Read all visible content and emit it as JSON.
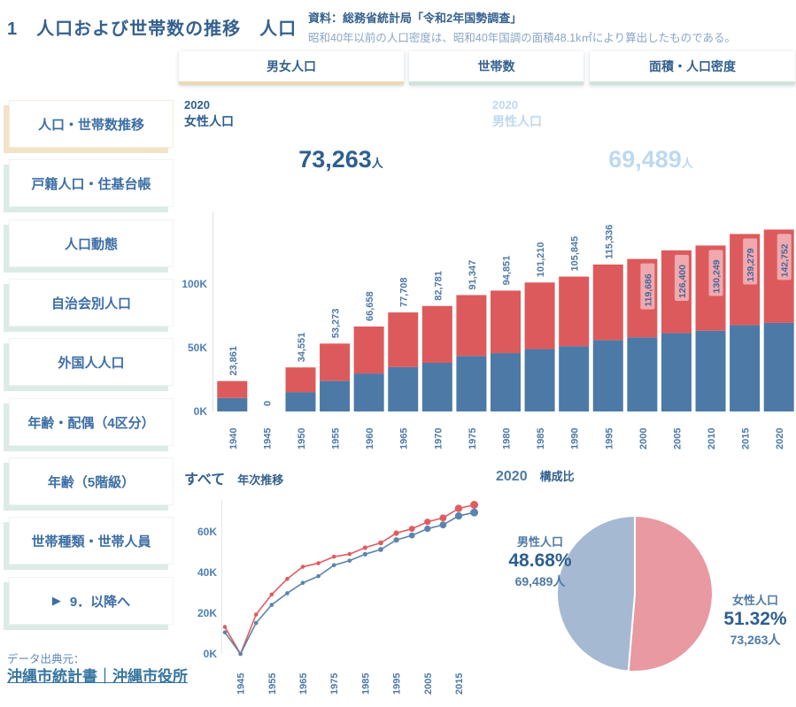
{
  "page": {
    "title": "1　人口および世帯数の推移　人口",
    "source_line1": "資料：総務省統計局「令和2年国勢調査」",
    "source_line2": "昭和40年以前の人口密度は、昭和40年国調の面積48.1k㎡により算出したものである。"
  },
  "colors": {
    "bar_male_blue": "#4d79a6",
    "bar_female_red": "#dd5a5c",
    "pie_female_pink": "#e999a1",
    "pie_male_blue": "#a5bad2",
    "tab_active_underline": "#ecdab3",
    "tab_underline": "#cfe4d8",
    "sidebar_active_shadow": "#f2e3c8",
    "sidebar_shadow": "#dcebe6",
    "axis_text": "#4e79a7",
    "inside_label_bg": "#f0a9ae"
  },
  "icons": {
    "play": "▶"
  },
  "tabs": [
    {
      "label": "男女人口",
      "active": true,
      "underline_color": "#ecdab3"
    },
    {
      "label": "世帯数",
      "active": false,
      "underline_color": "#cfe4d8"
    },
    {
      "label": "面積・人口密度",
      "active": false,
      "underline_color": "#cfe4d8"
    }
  ],
  "sidebar": {
    "items": [
      {
        "label": "人口・世帯数推移",
        "active": true
      },
      {
        "label": "戸籍人口・住基台帳",
        "active": false
      },
      {
        "label": "人口動態",
        "active": false
      },
      {
        "label": "自治会別人口",
        "active": false
      },
      {
        "label": "外国人人口",
        "active": false
      },
      {
        "label": "年齢・配偶（4区分）",
        "active": false
      },
      {
        "label": "年齢（5階級）",
        "active": false
      },
      {
        "label": "世帯種類・世帯人員",
        "active": false
      },
      {
        "label": "9．以降へ",
        "active": false,
        "icon": "play"
      }
    ]
  },
  "kpi": {
    "female": {
      "year": "2020",
      "label": "女性人口",
      "value": "73,263",
      "unit": "人"
    },
    "male": {
      "year": "2020",
      "label": "男性人口",
      "value": "69,489",
      "unit": "人"
    }
  },
  "footer": {
    "source_label": "データ出典元：",
    "link_text": "沖縄市統計書｜沖縄市役所"
  },
  "chart_data": [
    {
      "type": "bar",
      "stacked": true,
      "categories": [
        "1940",
        "1945",
        "1950",
        "1955",
        "1960",
        "1965",
        "1970",
        "1975",
        "1980",
        "1985",
        "1990",
        "1995",
        "2000",
        "2005",
        "2010",
        "2015",
        "2020"
      ],
      "series": [
        {
          "name": "男性人口",
          "color": "#4d79a6",
          "values": [
            10600,
            0,
            15200,
            24100,
            29800,
            34900,
            38200,
            43600,
            45800,
            49000,
            51300,
            56000,
            58200,
            61500,
            63400,
            67800,
            69489
          ]
        },
        {
          "name": "女性人口",
          "color": "#dd5a5c",
          "values": [
            13261,
            0,
            19351,
            29173,
            36858,
            42808,
            44581,
            47747,
            49051,
            52210,
            54545,
            59336,
            61486,
            64900,
            66849,
            71479,
            73263
          ]
        }
      ],
      "totals": [
        23861,
        0,
        34551,
        53273,
        66658,
        77708,
        82781,
        91347,
        94851,
        101210,
        105845,
        115336,
        119686,
        126400,
        130249,
        139279,
        142752
      ],
      "total_labels": [
        "23,861",
        "0",
        "34,551",
        "53,273",
        "66,658",
        "77,708",
        "82,781",
        "91,347",
        "94,851",
        "101,210",
        "105,845",
        "115,336",
        "119,686",
        "126,400",
        "130,249",
        "139,279",
        "142,752"
      ],
      "yticks": [
        {
          "label": "0K",
          "value": 0
        },
        {
          "label": "50K",
          "value": 50000
        },
        {
          "label": "100K",
          "value": 100000
        }
      ],
      "ylim": [
        0,
        155000
      ],
      "label_inside_from_index": 12
    },
    {
      "type": "line",
      "title_left": "すべて",
      "title_right": "年次推移",
      "x": [
        1940,
        1945,
        1950,
        1955,
        1960,
        1965,
        1970,
        1975,
        1980,
        1985,
        1990,
        1995,
        2000,
        2005,
        2010,
        2015,
        2020
      ],
      "series": [
        {
          "name": "女性人口",
          "color": "#e05c5f",
          "values": [
            13261,
            0,
            19351,
            29173,
            36858,
            42808,
            44581,
            47747,
            49051,
            52210,
            54545,
            59336,
            61486,
            64900,
            66849,
            71479,
            73263
          ]
        },
        {
          "name": "男性人口",
          "color": "#5b84ad",
          "values": [
            10600,
            0,
            15200,
            24100,
            29800,
            34900,
            38200,
            43600,
            45800,
            49000,
            51300,
            56000,
            58200,
            61500,
            63400,
            67800,
            69489
          ]
        }
      ],
      "yticks": [
        {
          "label": "0K",
          "value": 0
        },
        {
          "label": "20K",
          "value": 20000
        },
        {
          "label": "40K",
          "value": 40000
        },
        {
          "label": "60K",
          "value": 60000
        }
      ],
      "xticks": [
        "1945",
        "1955",
        "1965",
        "1975",
        "1985",
        "1995",
        "2005",
        "2015"
      ],
      "ylim": [
        0,
        80000
      ]
    },
    {
      "type": "pie",
      "title_year": "2020",
      "title_label": "構成比",
      "slices": [
        {
          "name": "女性人口",
          "pct_label": "51.32%",
          "count_label": "73,263人",
          "value": 51.32,
          "color": "#e999a1"
        },
        {
          "name": "男性人口",
          "pct_label": "48.68%",
          "count_label": "69,489人",
          "value": 48.68,
          "color": "#a5bad2"
        }
      ]
    }
  ]
}
